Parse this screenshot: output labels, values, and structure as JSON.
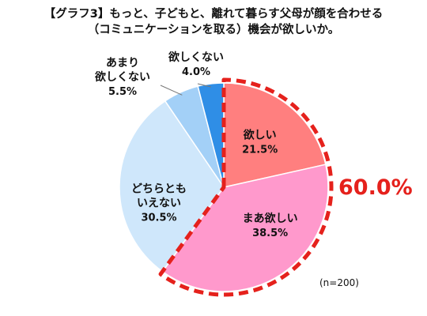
{
  "title_line1": "【グラフ3】もっと、子どもと、離れて暮らす父母が顔を合わせる",
  "title_line2": "（コミュニケーションを取る）機会が欲しいか。",
  "highlight_total": "60.0%",
  "note": "(n=200)",
  "chart_data": {
    "type": "pie",
    "title": "【グラフ3】もっと、子どもと、離れて暮らす父母が顔を合わせる（コミュニケーションを取る）機会が欲しいか。",
    "start": "12 o'clock",
    "direction": "clockwise",
    "slices": [
      {
        "label": "欲しい",
        "value": 21.5,
        "display": "21.5%",
        "color": "#ff7f7f"
      },
      {
        "label": "まあ欲しい",
        "value": 38.5,
        "display": "38.5%",
        "color": "#ff99cc"
      },
      {
        "label": "どちらとも\nいえない",
        "value": 30.5,
        "display": "30.5%",
        "color": "#cfe7fb"
      },
      {
        "label": "あまり\n欲しくない",
        "value": 5.5,
        "display": "5.5%",
        "color": "#a3d0f7"
      },
      {
        "label": "欲しくない",
        "value": 4.0,
        "display": "4.0%",
        "color": "#2f8ee6"
      }
    ],
    "highlight": {
      "slices": [
        "欲しい",
        "まあ欲しい"
      ],
      "total": "60.0%",
      "border": "red-dashed",
      "color": "#e5211c"
    }
  }
}
